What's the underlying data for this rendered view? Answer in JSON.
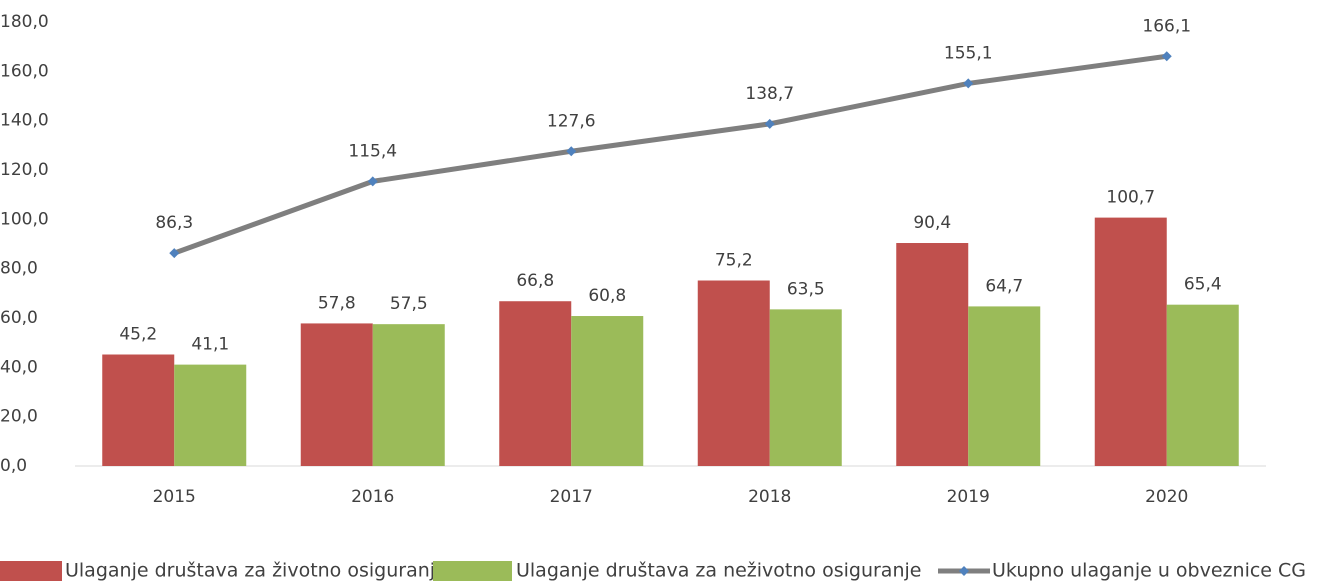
{
  "chart_data": {
    "type": "bar",
    "categories": [
      "2015",
      "2016",
      "2017",
      "2018",
      "2019",
      "2020"
    ],
    "series": [
      {
        "name": "Ulaganje društava za životno osiguranje",
        "color": "#c0504d",
        "type": "bar",
        "values": [
          45.2,
          57.8,
          66.8,
          75.2,
          90.4,
          100.7
        ],
        "value_labels": [
          "45,2",
          "57,8",
          "66,8",
          "75,2",
          "90,4",
          "100,7"
        ]
      },
      {
        "name": "Ulaganje društava za neživotno osiguranje",
        "color": "#9bbb59",
        "type": "bar",
        "values": [
          41.1,
          57.5,
          60.8,
          63.5,
          64.7,
          65.4
        ],
        "value_labels": [
          "41,1",
          "57,5",
          "60,8",
          "63,5",
          "64,7",
          "65,4"
        ]
      },
      {
        "name": "Ukupno ulaganje u obveznice CG",
        "color": "#7f7f7f",
        "marker_color": "#4f81bd",
        "type": "line",
        "values": [
          86.3,
          115.4,
          127.6,
          138.7,
          155.1,
          166.1
        ],
        "value_labels": [
          "86,3",
          "115,4",
          "127,6",
          "138,7",
          "155,1",
          "166,1"
        ]
      }
    ],
    "ylim": [
      0,
      180
    ],
    "yticks": [
      {
        "value": 0,
        "label": "0,0"
      },
      {
        "value": 20,
        "label": "20,0"
      },
      {
        "value": 40,
        "label": "40,0"
      },
      {
        "value": 60,
        "label": "60,0"
      },
      {
        "value": 80,
        "label": "80,0"
      },
      {
        "value": 100,
        "label": "100,0"
      },
      {
        "value": 120,
        "label": "120,0"
      },
      {
        "value": 140,
        "label": "140,0"
      },
      {
        "value": 160,
        "label": "160,0"
      },
      {
        "value": 180,
        "label": "180,0"
      }
    ],
    "grid": false,
    "legend": "bottom"
  }
}
